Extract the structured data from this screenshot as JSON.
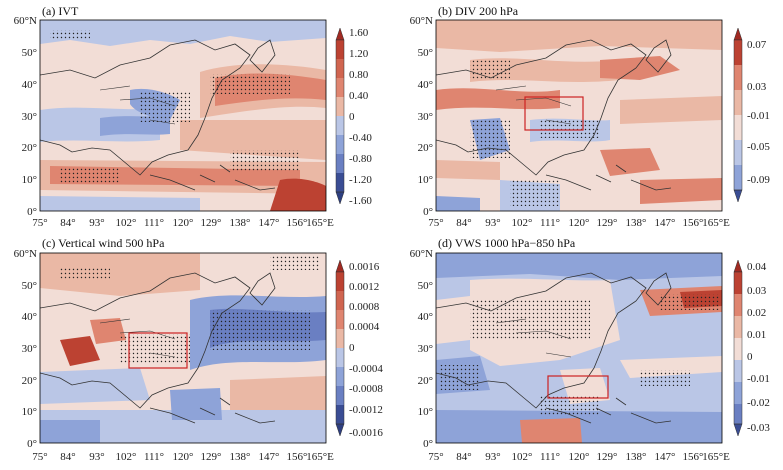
{
  "figure": {
    "panels": [
      {
        "id": "a",
        "title": "(a) IVT",
        "colorbar": {
          "ticks": [
            "1.60",
            "1.20",
            "0.80",
            "0.40",
            "0",
            "-0.40",
            "-0.80",
            "-1.20",
            "-1.60"
          ]
        },
        "highlight_box": null
      },
      {
        "id": "b",
        "title": "(b) DIV 200 hPa",
        "colorbar": {
          "ticks": [
            "0.07",
            "0.03",
            "-0.01",
            "-0.05",
            "-0.09"
          ]
        },
        "highlight_box": {
          "lon": [
            103,
            121
          ],
          "lat": [
            26,
            36
          ]
        }
      },
      {
        "id": "c",
        "title": "(c) Vertical wind 500 hPa",
        "colorbar": {
          "ticks": [
            "0.0016",
            "0.0012",
            "0.0008",
            "0.0004",
            "0",
            "-0.0004",
            "-0.0008",
            "-0.0012",
            "-0.0016"
          ]
        },
        "highlight_box": {
          "lon": [
            104,
            121
          ],
          "lat": [
            23,
            33
          ]
        }
      },
      {
        "id": "d",
        "title": "(d) VWS 1000 hPa−850 hPa",
        "colorbar": {
          "ticks": [
            "0.04",
            "0.03",
            "0.02",
            "0.01",
            "0",
            "-0.01",
            "-0.02",
            "-0.03"
          ]
        },
        "highlight_box": {
          "lon": [
            113,
            128
          ],
          "lat": [
            14,
            21
          ]
        }
      }
    ],
    "axes": {
      "x_ticks": [
        "75°",
        "84°",
        "93°",
        "102°",
        "111°",
        "120°",
        "129°",
        "138°",
        "147°",
        "156°",
        "165°E"
      ],
      "y_ticks": [
        "60°N",
        "50°",
        "40°",
        "30°",
        "20°",
        "10°",
        "0°"
      ],
      "lon_range": [
        75,
        165
      ],
      "lat_range": [
        0,
        60
      ]
    },
    "colors": {
      "neg_strong": "#3a4d94",
      "neg": "#8ea3d8",
      "neg_light": "#bac6e6",
      "zero": "#f2ddd6",
      "pos_light": "#eab8a5",
      "pos": "#df8570",
      "pos_strong": "#bc4232",
      "box": "#cc2222"
    }
  }
}
